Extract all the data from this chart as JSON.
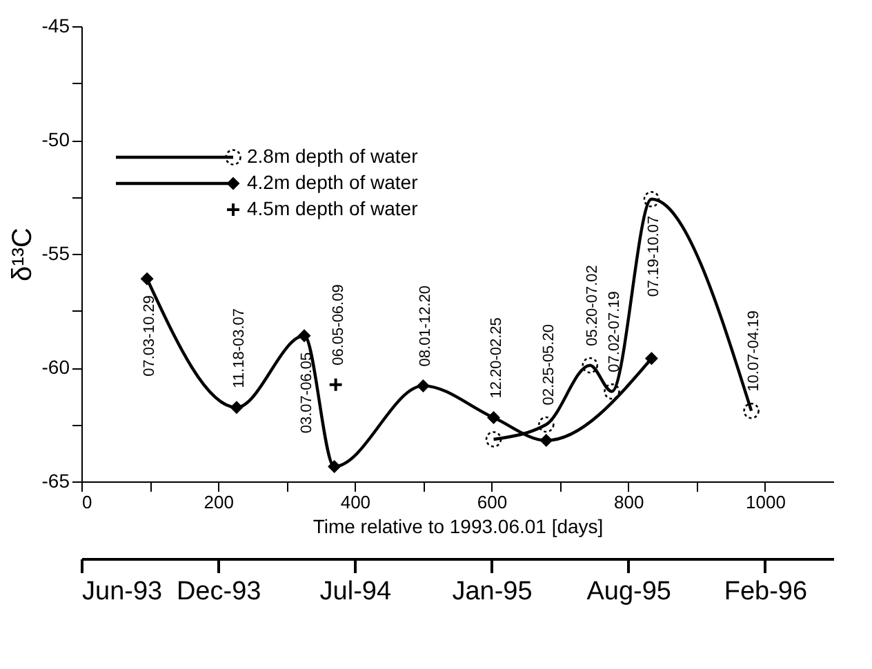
{
  "chart_data": {
    "type": "line",
    "xlabel": "Time relative to 1993.06.01 [days]",
    "ylabel": "δ¹³C",
    "xlim": [
      0,
      1100
    ],
    "ylim": [
      -65,
      -45
    ],
    "xticks": [
      0,
      {
        "value": 100,
        "label": null
      },
      200,
      {
        "value": 300,
        "label": null
      },
      400,
      {
        "value": 500,
        "label": null
      },
      600,
      {
        "value": 700,
        "label": null
      },
      800,
      {
        "value": 900,
        "label": null
      },
      1000
    ],
    "yticks": [
      -65,
      {
        "value": -62.5,
        "label": null
      },
      -60,
      {
        "value": -57.5,
        "label": null
      },
      -55,
      {
        "value": -52.5,
        "label": null
      },
      -50,
      {
        "value": -47.5,
        "label": null
      },
      -45
    ],
    "x2lim": [
      "1993-06-01",
      "1996-06-05"
    ],
    "x2ticks": [
      {
        "value": "1993-06-01",
        "label": "Jun-93"
      },
      {
        "value": "1993-12-18",
        "label": "Dec-93"
      },
      {
        "value": "1994-07-06",
        "label": "Jul-94"
      },
      {
        "value": "1995-01-22",
        "label": "Jan-95"
      },
      {
        "value": "1995-08-10",
        "label": "Aug-95"
      },
      {
        "value": "1996-02-26",
        "label": "Feb-96"
      }
    ],
    "grid": false,
    "legend": "top left",
    "line_style": "solid",
    "series": [
      {
        "name": "2.8m depth of water",
        "type": "line",
        "marker": "circle",
        "color": "#000000",
        "x": [
          603,
          680,
          744,
          776,
          834,
          980
        ],
        "values": [
          -63.15,
          -62.5,
          -59.9,
          -61.05,
          -52.6,
          -61.9
        ]
      },
      {
        "name": "4.2m depth of water",
        "type": "line",
        "marker": "diamond",
        "color": "#000000",
        "x": [
          96,
          227,
          326,
          370,
          500,
          603,
          680,
          834
        ],
        "values": [
          -56.1,
          -61.75,
          -58.6,
          -64.35,
          -60.8,
          -62.2,
          -63.2,
          -59.6
        ]
      },
      {
        "name": "4.5m depth of water",
        "type": "scatter",
        "marker": "cross",
        "color": "#000000",
        "x": [
          372
        ],
        "values": [
          -60.75
        ]
      }
    ],
    "annotations": [
      {
        "text": "07.03-10.29",
        "x": 96,
        "y": -56.1
      },
      {
        "text": "11.18-03.07",
        "x": 227,
        "y": -61.75
      },
      {
        "text": "03.07-06.05",
        "x": 326,
        "y": -58.6
      },
      {
        "text": "06.05-06.09",
        "x": 372,
        "y": -60.75
      },
      {
        "text": "08.01-12.20",
        "x": 500,
        "y": -60.8
      },
      {
        "text": "12.20-02.25",
        "x": 603,
        "y": -62.2
      },
      {
        "text": "02.25-05.20",
        "x": 680,
        "y": -62.5
      },
      {
        "text": "05.20-07.02",
        "x": 744,
        "y": -59.9
      },
      {
        "text": "07.02-07.19",
        "x": 776,
        "y": -61.05
      },
      {
        "text": "07.19-10.07",
        "x": 834,
        "y": -52.6
      },
      {
        "text": "10.07-04.19",
        "x": 980,
        "y": -61.9
      }
    ]
  }
}
